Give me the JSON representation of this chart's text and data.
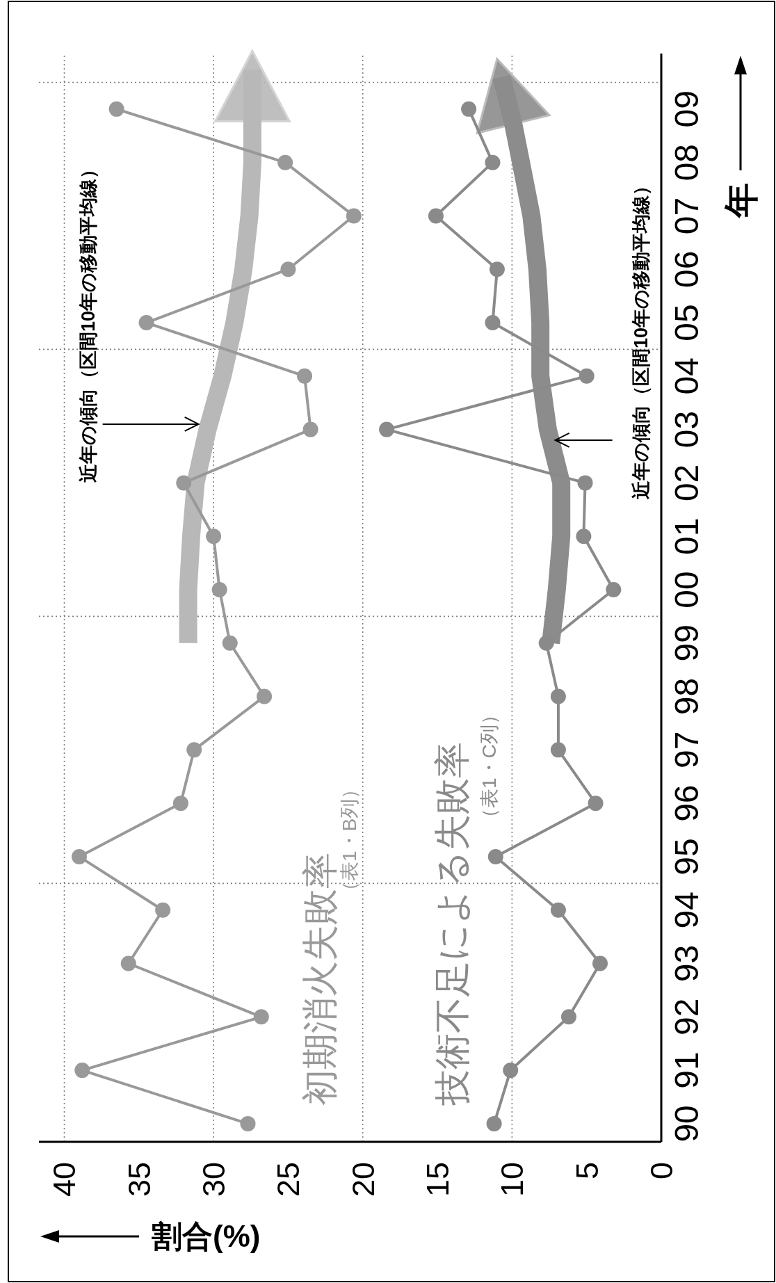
{
  "chart_data": {
    "type": "line",
    "orientation": "horizontal",
    "xlabel": "割合(%)",
    "ylabel": "年",
    "x": [
      1990,
      1991,
      1992,
      1993,
      1994,
      1995,
      1996,
      1997,
      1998,
      1999,
      2000,
      2001,
      2002,
      2003,
      2004,
      2005,
      2006,
      2007,
      2008,
      2009
    ],
    "xlim": [
      41.7,
      0
    ],
    "xticks": [
      40,
      35,
      30,
      25,
      20,
      15,
      10,
      5,
      0
    ],
    "ylim": [
      1989.66,
      2010.04
    ],
    "yticks": [
      {
        "value": 1990,
        "label": "90"
      },
      {
        "value": 1991,
        "label": "91"
      },
      {
        "value": 1992,
        "label": "92"
      },
      {
        "value": 1993,
        "label": "93"
      },
      {
        "value": 1994,
        "label": "94"
      },
      {
        "value": 1995,
        "label": "95"
      },
      {
        "value": 1996,
        "label": "96"
      },
      {
        "value": 1997,
        "label": "97"
      },
      {
        "value": 1998,
        "label": "98"
      },
      {
        "value": 1999,
        "label": "99"
      },
      {
        "value": 2000,
        "label": "00"
      },
      {
        "value": 2001,
        "label": "01"
      },
      {
        "value": 2002,
        "label": "02"
      },
      {
        "value": 2003,
        "label": "03"
      },
      {
        "value": 2004,
        "label": "04"
      },
      {
        "value": 2005,
        "label": "05"
      },
      {
        "value": 2006,
        "label": "06"
      },
      {
        "value": 2007,
        "label": "07"
      },
      {
        "value": 2008,
        "label": "08"
      },
      {
        "value": 2009,
        "label": "09"
      }
    ],
    "marker": "circle",
    "series": [
      {
        "name": "初期消火失敗率",
        "color": "#999999",
        "values": [
          27.7,
          38.8,
          26.8,
          35.7,
          33.4,
          39.0,
          32.2,
          31.3,
          26.6,
          28.9,
          29.6,
          30.0,
          32.0,
          23.5,
          23.9,
          34.5,
          25.0,
          20.6,
          25.2,
          36.5
        ]
      },
      {
        "name": "技術不足による失敗率",
        "color": "#8a8a8a",
        "values": [
          11.2,
          10.1,
          6.2,
          4.1,
          6.9,
          11.1,
          4.4,
          6.9,
          6.9,
          7.7,
          3.2,
          5.2,
          5.1,
          18.4,
          5.0,
          11.3,
          11.0,
          15.1,
          11.3,
          12.9
        ]
      },
      {
        "type": "line",
        "marker": "none",
        "color": "#b8b8b8",
        "x": [
          1999,
          2000,
          2001,
          2002,
          2003,
          2004,
          2005,
          2006,
          2007,
          2008,
          2008.75,
          2009.74
        ],
        "values": [
          31.7,
          31.7,
          31.5,
          31.2,
          30.4,
          29.4,
          28.6,
          28.0,
          27.6,
          27.4,
          27.4,
          27.4
        ]
      },
      {
        "type": "line",
        "marker": "none",
        "color": "#8c8c8c",
        "x": [
          1999,
          2000,
          2001,
          2002,
          2003,
          2004,
          2005,
          2006,
          2007,
          2008,
          2008.7,
          2009.6
        ],
        "values": [
          7.4,
          7.0,
          6.7,
          6.7,
          7.6,
          8.1,
          8.1,
          8.3,
          8.7,
          9.4,
          9.9,
          10.7
        ]
      }
    ],
    "ref_lines": [
      {
        "axis": "x",
        "value": 10,
        "color": "#808080",
        "line_style": "dotted"
      },
      {
        "axis": "x",
        "value": 20,
        "color": "#808080",
        "line_style": "dotted"
      },
      {
        "axis": "x",
        "value": 30,
        "color": "#808080",
        "line_style": "dotted"
      },
      {
        "axis": "x",
        "value": 40,
        "color": "#808080",
        "line_style": "dotted"
      },
      {
        "axis": "y",
        "value": 1994.5,
        "color": "#808080",
        "line_style": "dotted"
      },
      {
        "axis": "y",
        "value": 1999.5,
        "color": "#808080",
        "line_style": "dotted"
      },
      {
        "axis": "y",
        "value": 2004.5,
        "color": "#808080",
        "line_style": "dotted"
      },
      {
        "axis": "y",
        "value": 2009.5,
        "color": "#808080",
        "line_style": "dotted"
      }
    ],
    "annotations": [
      {
        "text": "近年の傾向（区間10年の移動平均線）",
        "x": 31.0,
        "y": 2003.1
      },
      {
        "text": "近年の傾向（区間10年の移動平均線）",
        "x": 7.1,
        "y": 2002.8
      },
      "（表1・B列）",
      "（表1・C列）"
    ]
  }
}
